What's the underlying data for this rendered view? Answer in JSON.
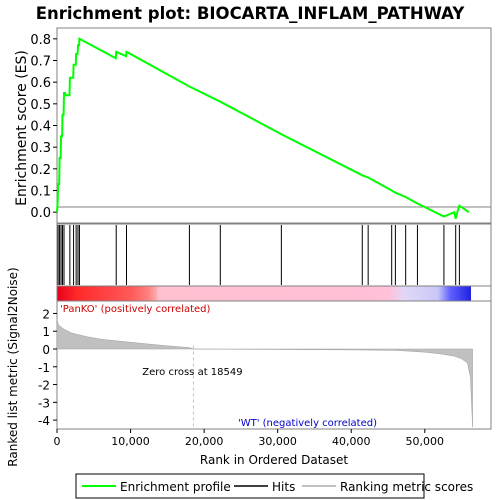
{
  "chart_data": {
    "type": "line",
    "title": "Enrichment plot: BIOCARTA_INFLAM_PATHWAY",
    "es_panel": {
      "ylabel": "Enrichment score (ES)",
      "ylim": [
        -0.05,
        0.85
      ],
      "yticks": [
        "0.0",
        "0.1",
        "0.2",
        "0.3",
        "0.4",
        "0.5",
        "0.6",
        "0.7",
        "0.8"
      ],
      "series": [
        {
          "name": "Enrichment profile",
          "color": "#00ff00",
          "x": [
            0,
            100,
            150,
            300,
            350,
            500,
            550,
            700,
            750,
            900,
            950,
            1100,
            1150,
            1700,
            1750,
            2200,
            2250,
            2550,
            2600,
            2800,
            2850,
            3000,
            3050,
            8000,
            8050,
            9400,
            9450,
            18000,
            22200,
            30500,
            41500,
            42300,
            45500,
            46000,
            47400,
            49000,
            52600,
            54000,
            54200,
            54500,
            54700,
            56000
          ],
          "y": [
            0.0,
            0.05,
            0.13,
            0.13,
            0.25,
            0.25,
            0.35,
            0.35,
            0.45,
            0.45,
            0.55,
            0.55,
            0.54,
            0.54,
            0.62,
            0.62,
            0.68,
            0.68,
            0.73,
            0.73,
            0.77,
            0.77,
            0.8,
            0.71,
            0.74,
            0.72,
            0.74,
            0.58,
            0.51,
            0.36,
            0.17,
            0.16,
            0.1,
            0.09,
            0.07,
            0.04,
            -0.02,
            0.0,
            -0.03,
            0.01,
            0.03,
            0.0
          ]
        }
      ]
    },
    "hits": {
      "name": "Hits",
      "color": "#000000",
      "positions": [
        150,
        350,
        550,
        750,
        950,
        1750,
        2250,
        2600,
        2850,
        3050,
        8050,
        9450,
        18000,
        22200,
        30500,
        41500,
        42300,
        45500,
        46000,
        47400,
        49000,
        52600,
        54200,
        54700
      ]
    },
    "ranking": {
      "ylabel": "Ranked list metric (Signal2Noise)",
      "xlabel": "Rank in Ordered Dataset",
      "ylim": [
        -4.5,
        2.7
      ],
      "yticks": [
        "2",
        "1",
        "0",
        "-1",
        "-2",
        "-3",
        "-4"
      ],
      "xlim": [
        0,
        59000
      ],
      "xticks": [
        "0",
        "10,000",
        "20,000",
        "30,000",
        "40,000",
        "50,000"
      ],
      "zero_cross": 18549,
      "zero_cross_label": "Zero cross at 18549",
      "pos_label": "'PanKO' (positively correlated)",
      "neg_label": "'WT' (negatively correlated)",
      "pos_label_color": "#cc0000",
      "neg_label_color": "#0000cc",
      "fill_color": "#c0c0c0",
      "total": 56500,
      "curve_x": [
        0,
        200,
        1000,
        2000,
        4000,
        6000,
        9000,
        12000,
        15000,
        18000,
        18549,
        22000,
        30000,
        40000,
        46000,
        47000,
        50000,
        52000,
        54000,
        55000,
        55800,
        56200,
        56500
      ],
      "curve_y": [
        1.7,
        1.35,
        1.1,
        0.9,
        0.7,
        0.55,
        0.42,
        0.3,
        0.18,
        0.08,
        0.0,
        -0.01,
        -0.03,
        -0.05,
        -0.08,
        -0.1,
        -0.18,
        -0.27,
        -0.4,
        -0.55,
        -0.8,
        -1.6,
        -4.4
      ]
    },
    "legend": [
      {
        "label": "Enrichment profile",
        "color": "#00ff00"
      },
      {
        "label": "Hits",
        "color": "#000000"
      },
      {
        "label": "Ranking metric scores",
        "color": "#c0c0c0"
      }
    ]
  }
}
